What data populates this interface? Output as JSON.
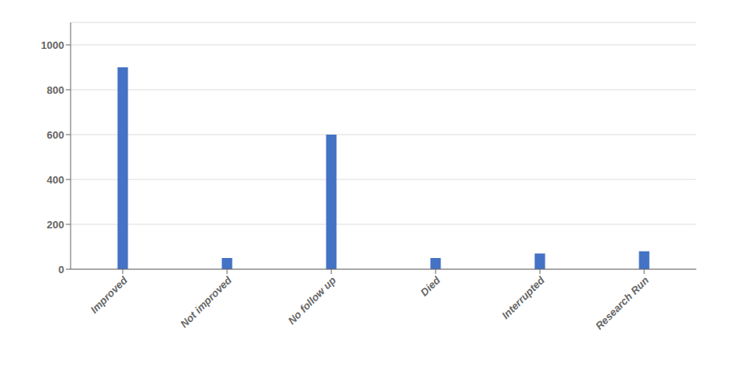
{
  "chart_data": {
    "type": "bar",
    "categories": [
      "Improved",
      "Not improved",
      "No follow up",
      "Died",
      "Interrupted",
      "Research Run"
    ],
    "values": [
      900,
      50,
      600,
      50,
      70,
      80
    ],
    "color": "#4472C4",
    "ylim": [
      0,
      1100
    ],
    "yticks": [
      0,
      200,
      400,
      600,
      800,
      1000
    ],
    "grid": true
  }
}
